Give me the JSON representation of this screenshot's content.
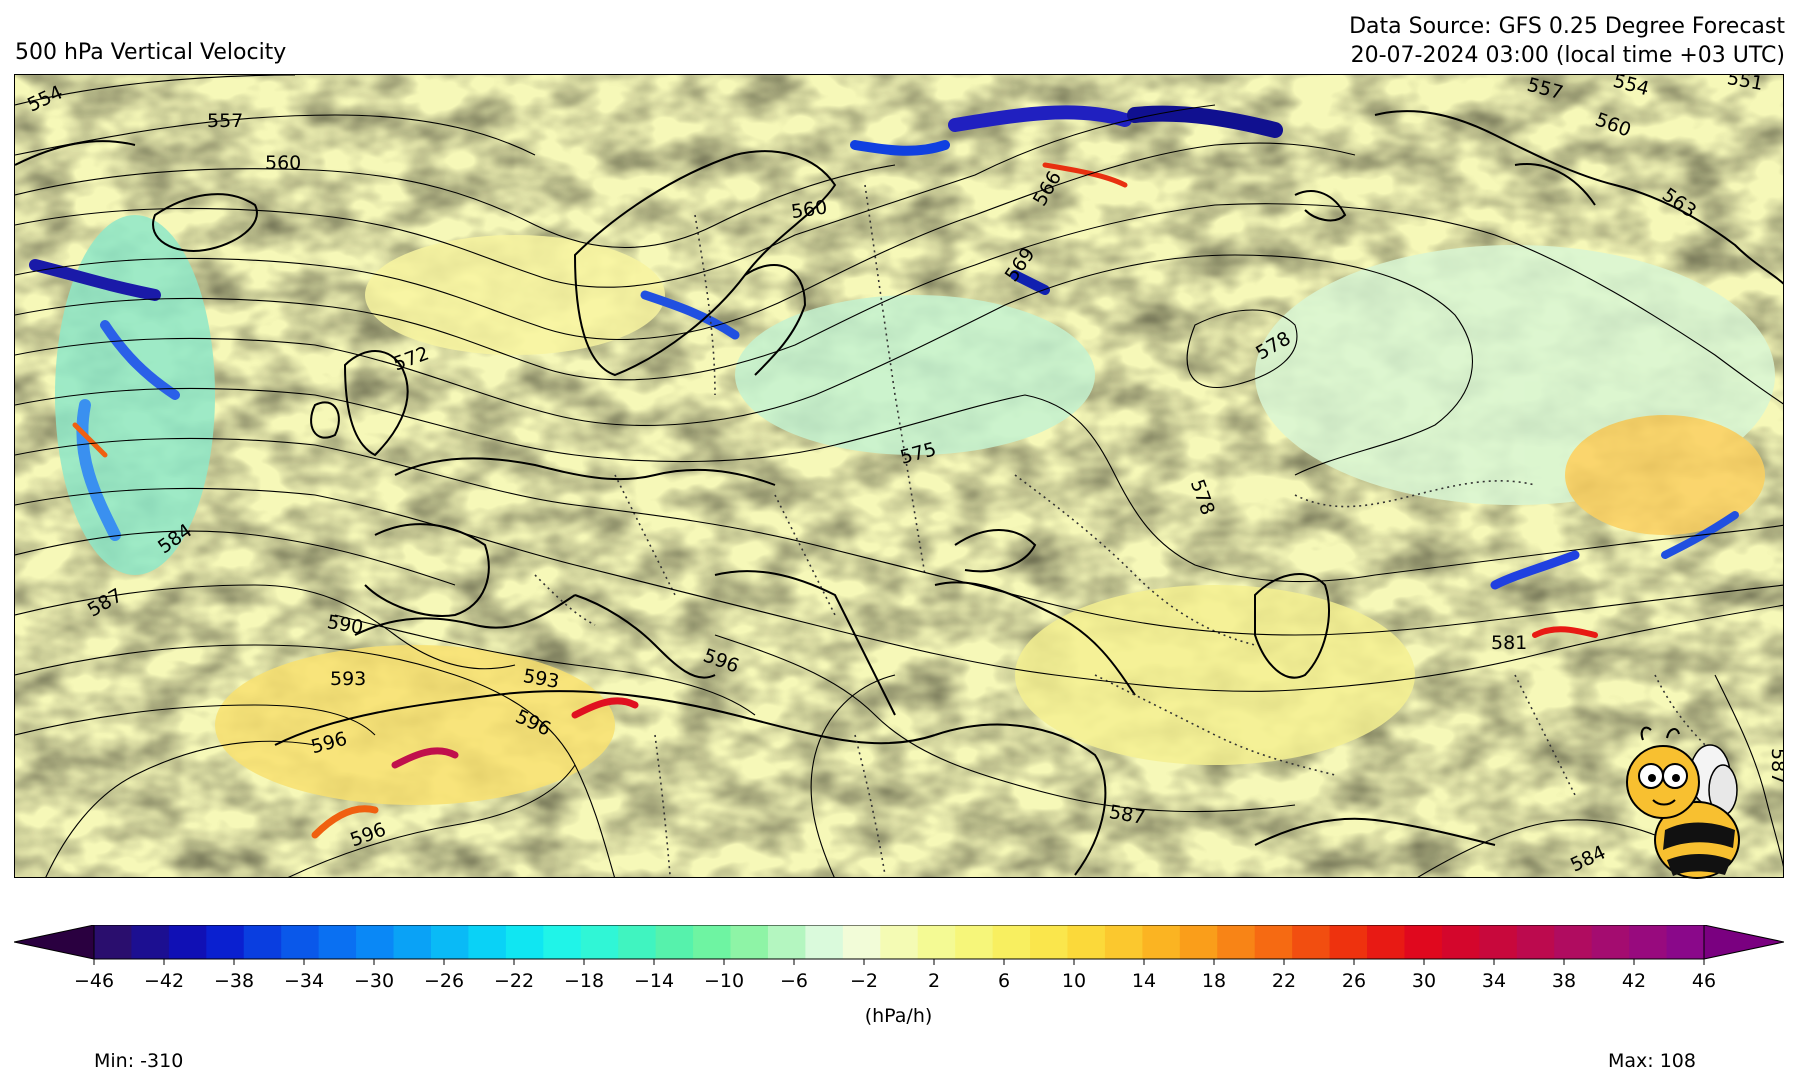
{
  "header": {
    "title": "500 hPa Vertical Velocity",
    "source": "Data Source: GFS 0.25 Degree Forecast",
    "datetime": "20-07-2024 03:00 (local time +03 UTC)"
  },
  "colorbar": {
    "unit": "(hPa/h)",
    "ticks": [
      "−46",
      "−42",
      "−38",
      "−34",
      "−30",
      "−26",
      "−22",
      "−18",
      "−14",
      "−10",
      "−6",
      "−2",
      "2",
      "6",
      "10",
      "14",
      "18",
      "22",
      "26",
      "30",
      "34",
      "38",
      "42",
      "46"
    ],
    "colors": [
      "#2a0e6e",
      "#1c0f91",
      "#1010b5",
      "#0a20d0",
      "#0a3ee0",
      "#0a58ea",
      "#0a70f2",
      "#0a88f6",
      "#0aa2f6",
      "#0abaf6",
      "#0ad2f6",
      "#10e6f2",
      "#20f4e8",
      "#30f6d6",
      "#40f4c0",
      "#56f2ac",
      "#6ef4a2",
      "#8ef4a6",
      "#b4f6c0",
      "#dafadc",
      "#f2fcd8",
      "#f4fbb4",
      "#f4fa94",
      "#f6f67a",
      "#f8ef60",
      "#fae64c",
      "#fbd93a",
      "#fbc82e",
      "#fbb422",
      "#fa9e1a",
      "#f88416",
      "#f66a12",
      "#f24e10",
      "#ee320e",
      "#e81a14",
      "#e0081e",
      "#d4062c",
      "#c8083c",
      "#bc0a4e",
      "#b00c60",
      "#a40c70",
      "#980a7e",
      "#8a088a"
    ],
    "extend_min_color": "#2a0040",
    "extend_max_color": "#7a0080"
  },
  "stats": {
    "min": "Min: -310",
    "max": "Max: 108"
  },
  "contours": {
    "labels": [
      {
        "value": "554"
      },
      {
        "value": "557"
      },
      {
        "value": "560"
      },
      {
        "value": "560"
      },
      {
        "value": "566"
      },
      {
        "value": "569"
      },
      {
        "value": "575"
      },
      {
        "value": "578"
      },
      {
        "value": "578"
      },
      {
        "value": "584"
      },
      {
        "value": "587"
      },
      {
        "value": "590"
      },
      {
        "value": "593"
      },
      {
        "value": "593"
      },
      {
        "value": "596"
      },
      {
        "value": "596"
      },
      {
        "value": "596"
      },
      {
        "value": "596"
      },
      {
        "value": "581"
      },
      {
        "value": "587"
      },
      {
        "value": "587"
      },
      {
        "value": "584"
      },
      {
        "value": "557"
      },
      {
        "value": "554"
      },
      {
        "value": "551"
      },
      {
        "value": "560"
      },
      {
        "value": "563"
      },
      {
        "value": "572"
      }
    ]
  },
  "icons": {
    "mascot": "bee-mascot-icon"
  }
}
